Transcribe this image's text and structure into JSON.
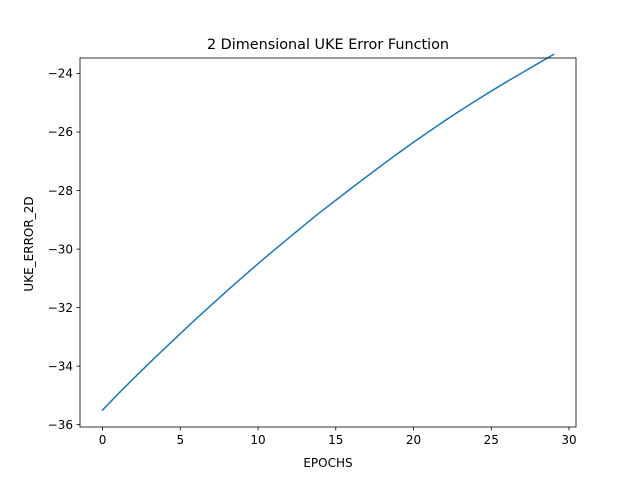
{
  "chart_data": {
    "type": "line",
    "title": "2 Dimensional UKE Error Function",
    "xlabel": "EPOCHS",
    "ylabel": "UKE_ERROR_2D",
    "xlim": [
      -1.45,
      30.45
    ],
    "ylim": [
      -36.08,
      -23.47
    ],
    "xticks": [
      0,
      5,
      10,
      15,
      20,
      25,
      30
    ],
    "xtick_labels": [
      "0",
      "5",
      "10",
      "15",
      "20",
      "25",
      "30"
    ],
    "yticks": [
      -36,
      -34,
      -32,
      -30,
      -28,
      -26,
      -24
    ],
    "ytick_labels": [
      "−36",
      "−34",
      "−32",
      "−30",
      "−28",
      "−26",
      "−24"
    ],
    "grid": false,
    "series": [
      {
        "color": "#1f77b4",
        "x": [
          0,
          1,
          2,
          3,
          4,
          5,
          6,
          7,
          8,
          9,
          10,
          11,
          12,
          13,
          14,
          15,
          16,
          17,
          18,
          19,
          20,
          21,
          22,
          23,
          24,
          25,
          26,
          27,
          28,
          29
        ],
        "y": [
          -35.5,
          -34.95,
          -34.42,
          -33.9,
          -33.39,
          -32.89,
          -32.39,
          -31.91,
          -31.43,
          -30.96,
          -30.5,
          -30.05,
          -29.61,
          -29.17,
          -28.74,
          -28.33,
          -27.92,
          -27.52,
          -27.12,
          -26.73,
          -26.35,
          -25.98,
          -25.62,
          -25.27,
          -24.93,
          -24.6,
          -24.28,
          -23.97,
          -23.66,
          -23.35
        ]
      }
    ]
  }
}
